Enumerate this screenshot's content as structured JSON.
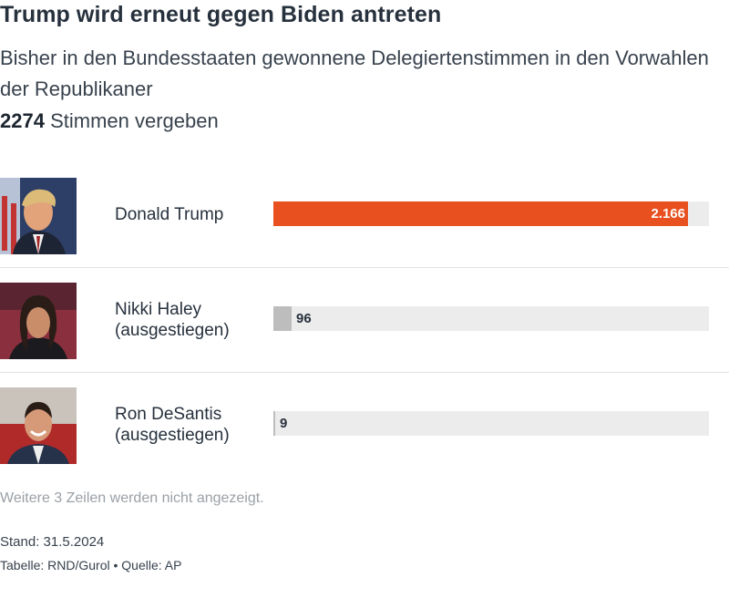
{
  "header": {
    "title": "Trump wird erneut gegen Biden antreten",
    "subtitle": "Bisher in den Bundesstaaten gewonnene Delegiertenstimmen in den Vorwahlen der Republikaner",
    "total_value": "2274",
    "total_label": "Stimmen vergeben"
  },
  "chart_data": {
    "type": "bar",
    "orientation": "horizontal",
    "max": 2274,
    "categories": [
      "Donald Trump",
      "Nikki Haley (ausgestiegen)",
      "Ron DeSantis (ausgestiegen)"
    ],
    "rows": [
      {
        "name": "Donald Trump",
        "status": "",
        "value": 2166,
        "label": "2.166",
        "color": "#e8501f"
      },
      {
        "name": "Nikki Haley",
        "status": "(ausgestiegen)",
        "value": 96,
        "label": "96",
        "color": "#bdbdbd"
      },
      {
        "name": "Ron DeSantis",
        "status": "(ausgestiegen)",
        "value": 9,
        "label": "9",
        "color": "#bdbdbd"
      }
    ]
  },
  "footer": {
    "hidden_rows_note": "Weitere 3 Zeilen werden nicht angezeigt.",
    "stand": "Stand: 31.5.2024",
    "credit": "Tabelle: RND/Gurol",
    "bullet": "•",
    "source": "Quelle: AP"
  },
  "colors": {
    "accent": "#e8501f",
    "dropped_out": "#bdbdbd",
    "track": "#ececec"
  }
}
